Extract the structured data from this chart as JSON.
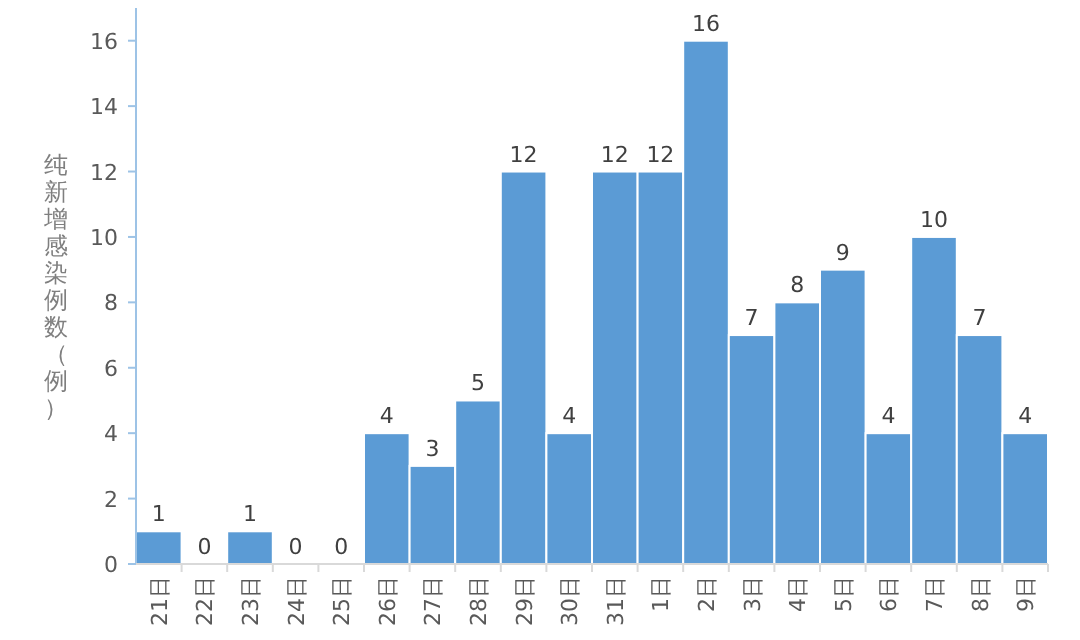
{
  "chart_data": {
    "type": "bar",
    "ylabel": "纯新增感染例数（例）",
    "categories": [
      "21日",
      "22日",
      "23日",
      "24日",
      "25日",
      "26日",
      "27日",
      "28日",
      "29日",
      "30日",
      "31日",
      "1日",
      "2日",
      "3日",
      "4日",
      "5日",
      "6日",
      "7日",
      "8日",
      "9日"
    ],
    "values": [
      1,
      0,
      1,
      0,
      0,
      4,
      3,
      5,
      12,
      4,
      12,
      12,
      16,
      7,
      8,
      9,
      4,
      10,
      7,
      4
    ],
    "color": "#5b9bd5",
    "ylim": [
      0,
      17
    ],
    "yticks": [
      0,
      2,
      4,
      6,
      8,
      10,
      12,
      14,
      16
    ],
    "data_labels": true,
    "grid": false
  }
}
